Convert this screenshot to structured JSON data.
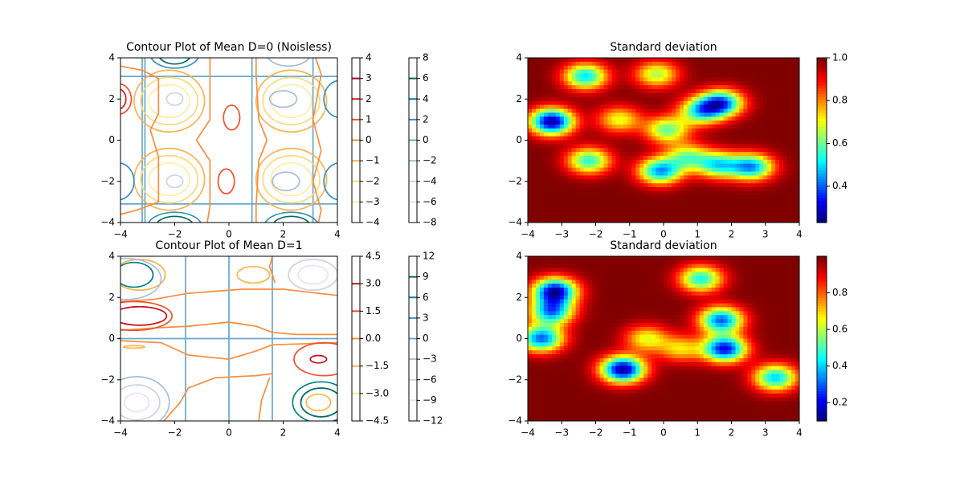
{
  "chart_data": [
    {
      "type": "contour",
      "title": "Contour Plot of Mean D=0 (Noisless)",
      "xlim": [
        -4,
        4
      ],
      "ylim": [
        -4,
        4
      ],
      "xticks": [
        "−4",
        "−2",
        "0",
        "2",
        "4"
      ],
      "yticks": [
        "−4",
        "−2",
        "0",
        "2",
        "4"
      ],
      "colorbars": [
        {
          "cmap": "YlOrRd",
          "range": [
            -4,
            4
          ],
          "ticks": [
            "−4",
            "−3",
            "−2",
            "−1",
            "0",
            "1",
            "2",
            "3",
            "4"
          ],
          "values": [
            -4,
            -3,
            -2,
            -1,
            0,
            1,
            2,
            3,
            4
          ],
          "line_colors": [
            "#ffffcc",
            "#ffeda0",
            "#fed976",
            "#feb24c",
            "#fd8d3c",
            "#fc4e2a",
            "#e31a1c",
            "#b10026",
            "#800026"
          ]
        },
        {
          "cmap": "PuBuGn",
          "range": [
            -8,
            8
          ],
          "ticks": [
            "−8",
            "−6",
            "−4",
            "−2",
            "0",
            "2",
            "4",
            "6",
            "8"
          ],
          "values": [
            -8,
            -6,
            -4,
            -2,
            0,
            2,
            4,
            6,
            8
          ],
          "line_colors": [
            "#fff7fb",
            "#ece2f0",
            "#d0d1e6",
            "#a6bddb",
            "#67a9cf",
            "#3690c0",
            "#02818a",
            "#016c59",
            "#014636"
          ]
        }
      ]
    },
    {
      "type": "heatmap",
      "title": "Standard deviation",
      "cmap": "jet",
      "xlim": [
        -4,
        4
      ],
      "ylim": [
        -4,
        4
      ],
      "xticks": [
        "−4",
        "−3",
        "−2",
        "−1",
        "0",
        "1",
        "2",
        "3",
        "4"
      ],
      "yticks": [
        "−4",
        "−2",
        "0",
        "2",
        "4"
      ],
      "colorbar": {
        "range": [
          0.23,
          1.0
        ],
        "ticks": [
          "0.4",
          "0.6",
          "0.8",
          "1.0"
        ],
        "values": [
          0.4,
          0.6,
          0.8,
          1.0
        ]
      },
      "low_points": [
        {
          "x": -3.3,
          "y": 0.9,
          "min": 0.25
        },
        {
          "x": -2.3,
          "y": 3.1,
          "min": 0.5
        },
        {
          "x": -2.2,
          "y": -1.0,
          "min": 0.55
        },
        {
          "x": -1.3,
          "y": 1.0,
          "min": 0.7
        },
        {
          "x": -0.1,
          "y": -1.5,
          "min": 0.45
        },
        {
          "x": -0.2,
          "y": 3.2,
          "min": 0.65
        },
        {
          "x": 0.1,
          "y": 0.5,
          "min": 0.6
        },
        {
          "x": 1.1,
          "y": 1.4,
          "min": 0.55
        },
        {
          "x": 1.7,
          "y": 1.8,
          "min": 0.4
        },
        {
          "x": 1.6,
          "y": -1.2,
          "min": 0.55
        },
        {
          "x": 2.6,
          "y": -1.3,
          "min": 0.45
        },
        {
          "x": 0.7,
          "y": -0.8,
          "min": 0.65
        }
      ]
    },
    {
      "type": "contour",
      "title": "Contour Plot of Mean D=1",
      "xlim": [
        -4,
        4
      ],
      "ylim": [
        -4,
        4
      ],
      "xticks": [
        "−4",
        "−2",
        "0",
        "2",
        "4"
      ],
      "yticks": [
        "−4",
        "−2",
        "0",
        "2",
        "4"
      ],
      "colorbars": [
        {
          "cmap": "YlOrRd",
          "range": [
            -4.5,
            4.5
          ],
          "ticks": [
            "−4.5",
            "−3.0",
            "−1.5",
            "0.0",
            "1.5",
            "3.0",
            "4.5"
          ],
          "values": [
            -4.5,
            -3.0,
            -1.5,
            0.0,
            1.5,
            3.0,
            4.5
          ],
          "line_colors": [
            "#ffffcc",
            "#fee38b",
            "#fdb44e",
            "#fd8d3c",
            "#f0502a",
            "#c9101e",
            "#800026"
          ]
        },
        {
          "cmap": "PuBuGn",
          "range": [
            -12,
            12
          ],
          "ticks": [
            "−12",
            "−9",
            "−6",
            "−3",
            "0",
            "3",
            "6",
            "9",
            "12"
          ],
          "values": [
            -12,
            -9,
            -6,
            -3,
            0,
            3,
            6,
            9,
            12
          ],
          "line_colors": [
            "#fff7fb",
            "#ece2f0",
            "#d0d1e6",
            "#a6bddb",
            "#67a9cf",
            "#3690c0",
            "#02818a",
            "#016c59",
            "#014636"
          ]
        }
      ]
    },
    {
      "type": "heatmap",
      "title": "Standard deviation",
      "cmap": "jet",
      "xlim": [
        -4,
        4
      ],
      "ylim": [
        -4,
        4
      ],
      "xticks": [
        "−4",
        "−3",
        "−2",
        "−1",
        "0",
        "1",
        "2",
        "3",
        "4"
      ],
      "yticks": [
        "−4",
        "−2",
        "0",
        "2",
        "4"
      ],
      "colorbar": {
        "range": [
          0.1,
          1.0
        ],
        "ticks": [
          "0.2",
          "0.4",
          "0.6",
          "0.8"
        ],
        "values": [
          0.2,
          0.4,
          0.6,
          0.8
        ]
      },
      "low_points": [
        {
          "x": -3.2,
          "y": 2.3,
          "min": 0.15
        },
        {
          "x": -3.3,
          "y": 1.3,
          "min": 0.35
        },
        {
          "x": -3.6,
          "y": 0.0,
          "min": 0.3
        },
        {
          "x": -1.2,
          "y": -1.5,
          "min": 0.12
        },
        {
          "x": 1.1,
          "y": 2.9,
          "min": 0.45
        },
        {
          "x": 1.7,
          "y": 0.9,
          "min": 0.3
        },
        {
          "x": 1.8,
          "y": -0.5,
          "min": 0.2
        },
        {
          "x": 3.3,
          "y": -1.9,
          "min": 0.4
        },
        {
          "x": -0.5,
          "y": 0.0,
          "min": 0.65
        },
        {
          "x": 0.5,
          "y": -0.5,
          "min": 0.7
        }
      ]
    }
  ]
}
